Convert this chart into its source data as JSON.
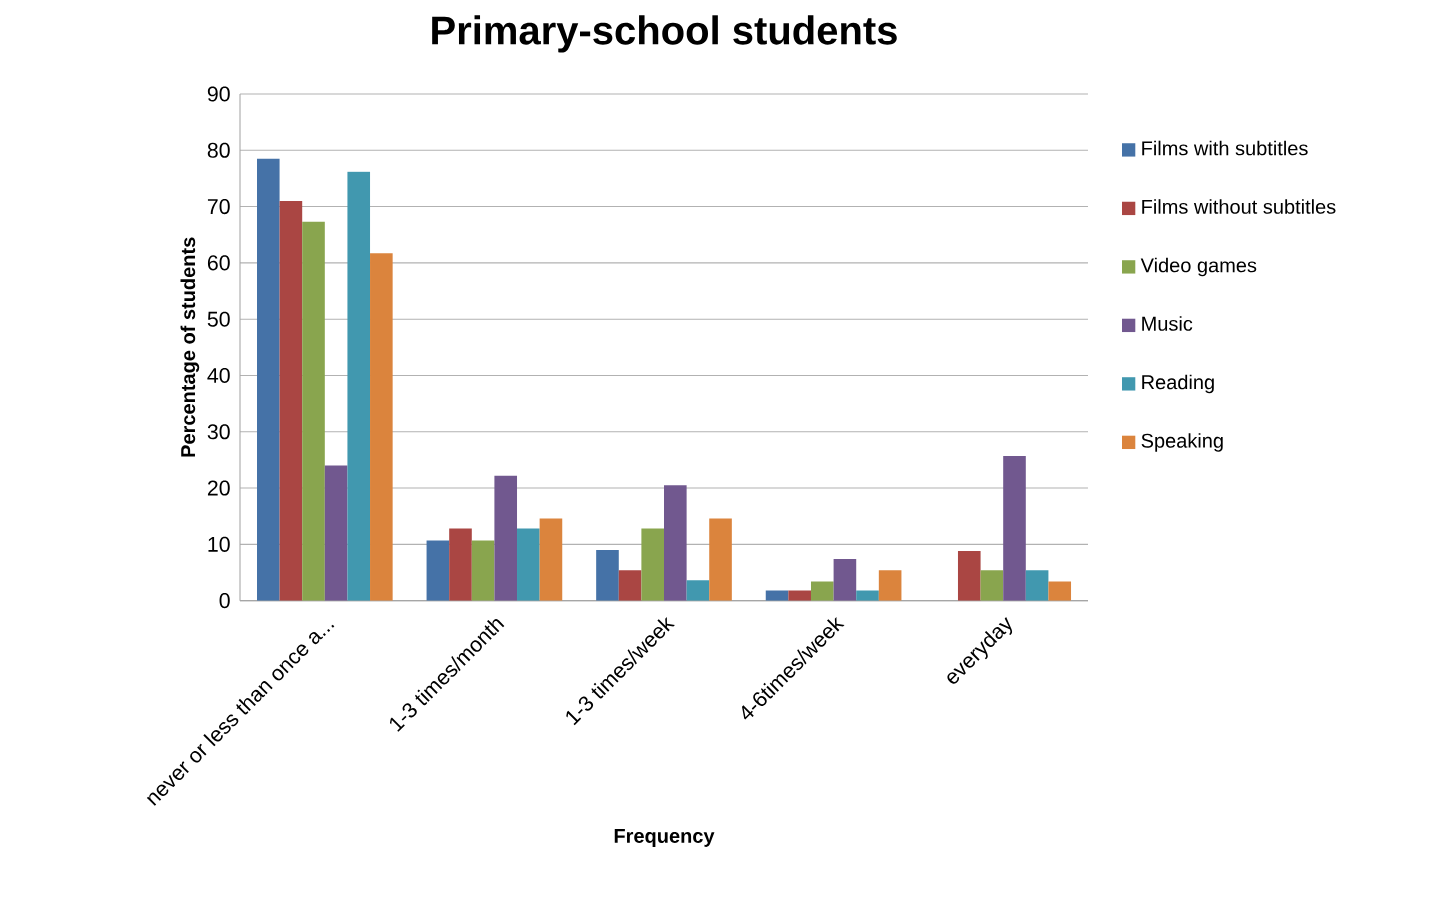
{
  "chart_data": {
    "type": "bar",
    "title": "Primary-school students",
    "xlabel": "Frequency",
    "ylabel": "Percentage of students",
    "categories": [
      "never or less than once a...",
      "1-3 times/month",
      "1-3 times/week",
      "4-6times/week",
      "everyday"
    ],
    "series": [
      {
        "name": "Films with subtitles",
        "color": "#4572a7",
        "values": [
          78.5,
          10.7,
          9,
          1.8,
          0
        ]
      },
      {
        "name": "Films without subtitles",
        "color": "#aa4643",
        "values": [
          71,
          12.8,
          5.4,
          1.8,
          8.8
        ]
      },
      {
        "name": "Video games",
        "color": "#89a54e",
        "values": [
          67.3,
          10.7,
          12.8,
          3.4,
          5.4
        ]
      },
      {
        "name": "Music",
        "color": "#71588f",
        "values": [
          24,
          22.2,
          20.5,
          7.4,
          25.7
        ]
      },
      {
        "name": "Reading",
        "color": "#4198af",
        "values": [
          76.2,
          12.8,
          3.6,
          1.8,
          5.4
        ]
      },
      {
        "name": "Speaking",
        "color": "#db843d",
        "values": [
          61.7,
          14.6,
          14.6,
          5.4,
          3.4
        ]
      }
    ],
    "ylim": [
      0,
      90
    ],
    "yticks": [
      0,
      10,
      20,
      30,
      40,
      50,
      60,
      70,
      80,
      90
    ],
    "grid": "y",
    "legend": "right"
  }
}
